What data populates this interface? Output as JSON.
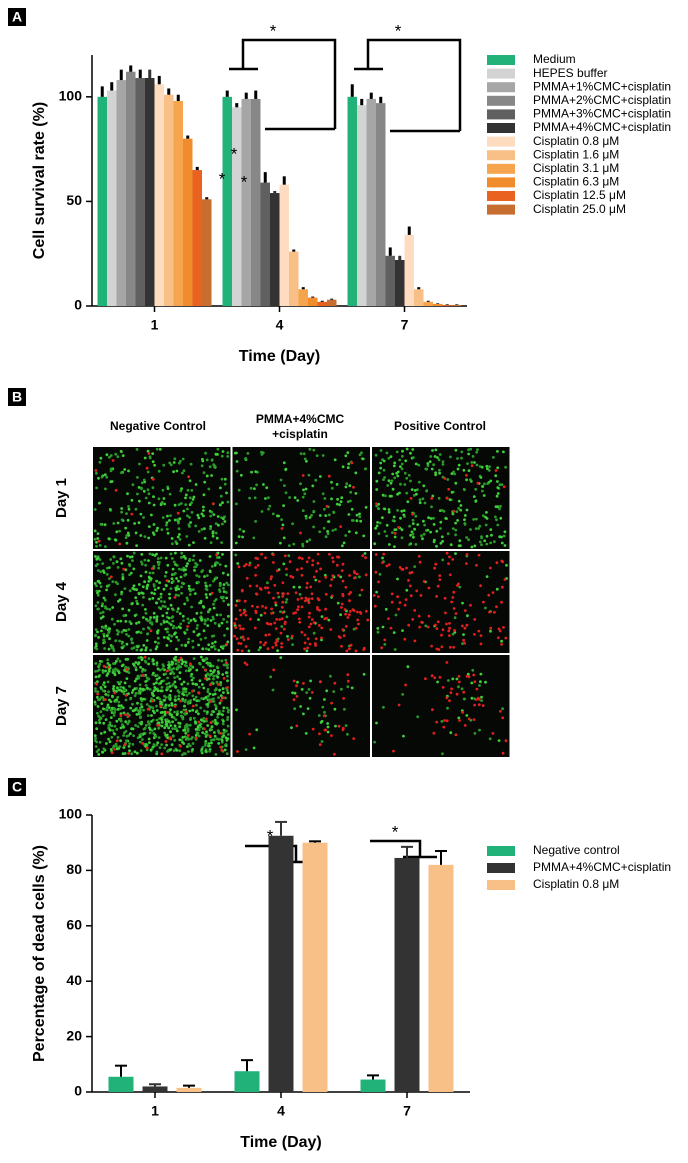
{
  "panel_labels": [
    "A",
    "B",
    "C"
  ],
  "chart_data": [
    {
      "type": "bar",
      "xlabel": "Time (Day)",
      "ylabel": "Cell survival rate (%)",
      "categories": [
        "1",
        "4",
        "7"
      ],
      "ylim": [
        0,
        120
      ],
      "yticks": [
        0,
        50,
        100
      ],
      "annotations": [
        "*",
        "*",
        "*",
        "*",
        "*"
      ],
      "series": [
        {
          "name": "Medium",
          "color": "#21b27a",
          "values": [
            100,
            100,
            100
          ],
          "errors": [
            5,
            3,
            6
          ]
        },
        {
          "name": "HEPES buffer",
          "color": "#d3d3d3",
          "values": [
            103,
            95,
            96
          ],
          "errors": [
            4,
            2,
            3
          ]
        },
        {
          "name": "PMMA+1%CMC+cisplatin",
          "color": "#a6a6a6",
          "values": [
            108,
            99,
            99
          ],
          "errors": [
            5,
            3,
            3
          ]
        },
        {
          "name": "PMMA+2%CMC+cisplatin",
          "color": "#878787",
          "values": [
            112,
            99,
            97
          ],
          "errors": [
            3,
            4,
            3
          ]
        },
        {
          "name": "PMMA+3%CMC+cisplatin",
          "color": "#606060",
          "values": [
            109,
            59,
            24
          ],
          "errors": [
            4,
            5,
            4
          ]
        },
        {
          "name": "PMMA+4%CMC+cisplatin",
          "color": "#333333",
          "values": [
            109,
            54,
            22
          ],
          "errors": [
            4,
            1,
            2
          ]
        },
        {
          "name": "Cisplatin 0.8 μM",
          "color": "#fddcc0",
          "values": [
            106,
            58,
            34
          ],
          "errors": [
            4,
            4,
            4
          ]
        },
        {
          "name": "Cisplatin 1.6 μM",
          "color": "#f8bf86",
          "values": [
            101,
            26,
            8
          ],
          "errors": [
            3,
            1,
            1
          ]
        },
        {
          "name": "Cisplatin 3.1 μM",
          "color": "#f6a54e",
          "values": [
            98,
            8,
            2
          ],
          "errors": [
            3,
            1,
            0.5
          ]
        },
        {
          "name": "Cisplatin 6.3 μM",
          "color": "#f08c2c",
          "values": [
            80,
            4,
            1
          ],
          "errors": [
            1.5,
            0.5,
            0.3
          ]
        },
        {
          "name": "Cisplatin 12.5 μM",
          "color": "#e9621f",
          "values": [
            65,
            2,
            0.5
          ],
          "errors": [
            1.5,
            0.5,
            0.3
          ]
        },
        {
          "name": "Cisplatin 25.0 μM",
          "color": "#c66d2f",
          "values": [
            51,
            3,
            0.5
          ],
          "errors": [
            1,
            0.5,
            0.3
          ]
        }
      ]
    },
    {
      "type": "bar",
      "xlabel": "Time (Day)",
      "ylabel": "Percentage of dead cells (%)",
      "categories": [
        "1",
        "4",
        "7"
      ],
      "ylim": [
        0,
        100
      ],
      "yticks": [
        0,
        20,
        40,
        60,
        80,
        100
      ],
      "annotations": [
        "*",
        "*"
      ],
      "series": [
        {
          "name": "Negative control",
          "color": "#21b27a",
          "values": [
            5.5,
            7.5,
            4.5
          ],
          "errors": [
            4,
            4,
            1.5
          ]
        },
        {
          "name": "PMMA+4%CMC+cisplatin",
          "color": "#333333",
          "values": [
            2,
            92.5,
            84.5
          ],
          "errors": [
            0.8,
            5,
            4
          ]
        },
        {
          "name": "Cisplatin 0.8 μM",
          "color": "#f8bf86",
          "values": [
            1.5,
            90,
            82
          ],
          "errors": [
            0.8,
            0.5,
            5
          ]
        }
      ]
    }
  ],
  "image_grid": {
    "columns": [
      "Negative Control",
      [
        "PMMA+4%CMC",
        "+cisplatin"
      ],
      "Positive Control"
    ],
    "rows": [
      "Day 1",
      "Day 4",
      "Day 7"
    ]
  }
}
